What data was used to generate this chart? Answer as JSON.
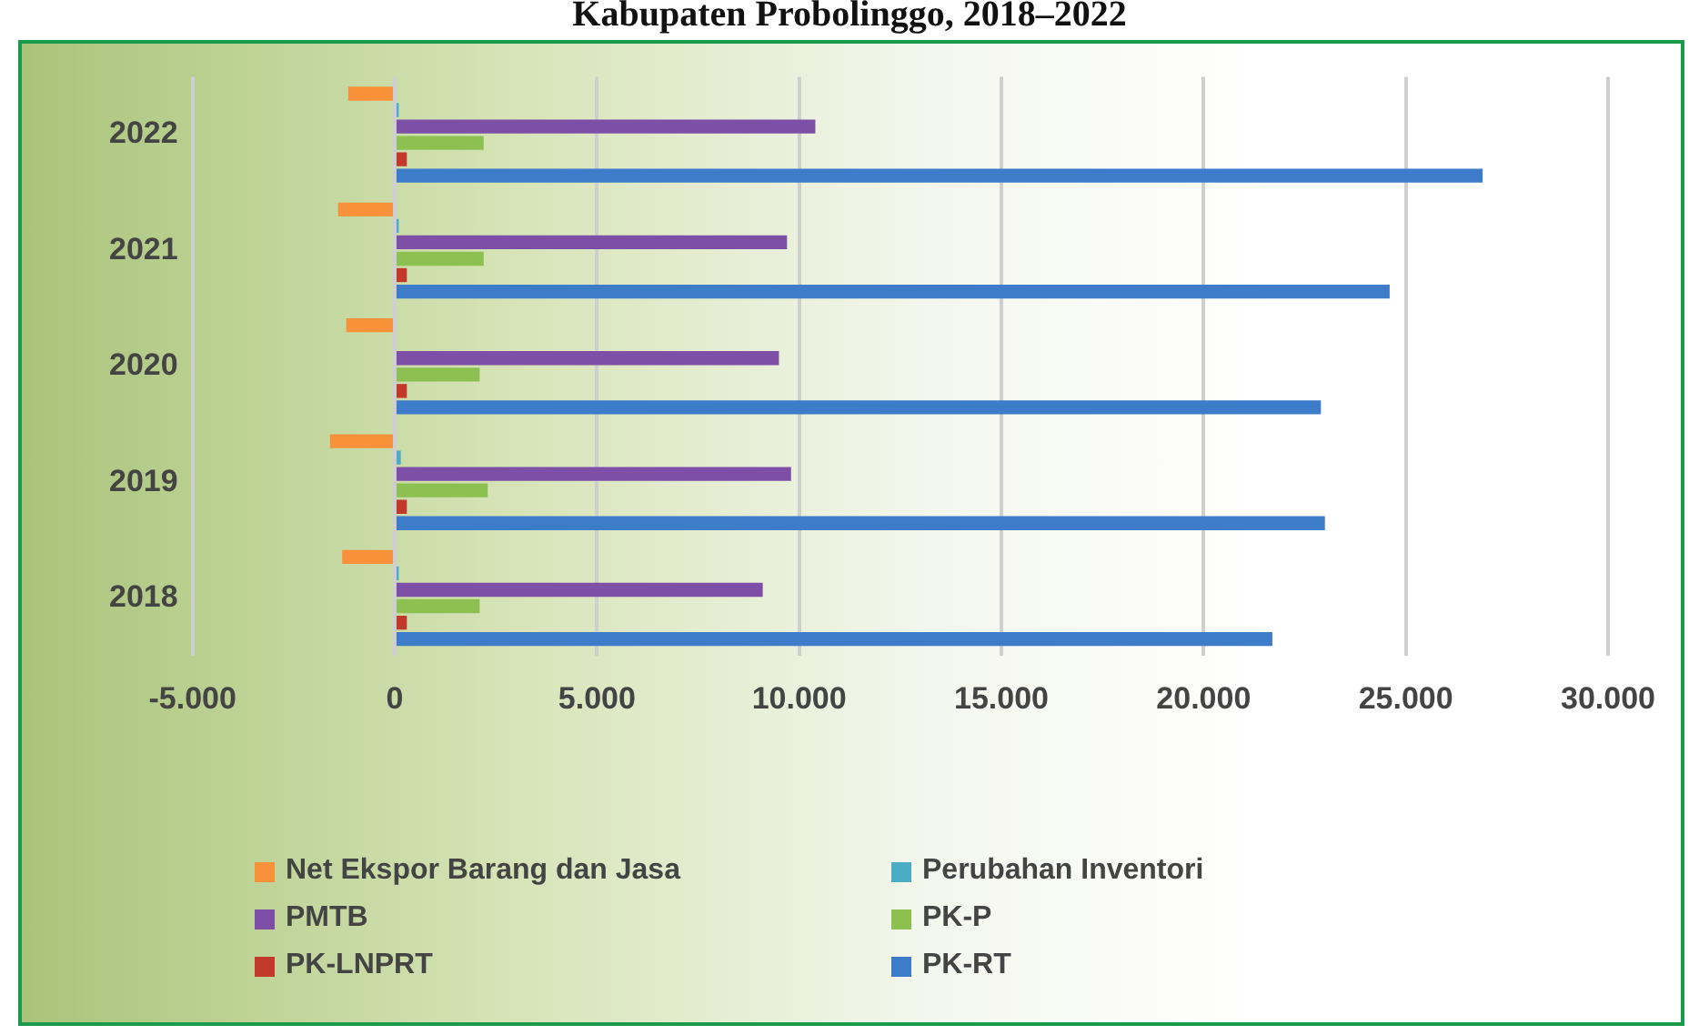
{
  "chart_data": {
    "type": "bar",
    "orientation": "horizontal",
    "title": "Kabupaten Probolinggo, 2018–2022",
    "categories": [
      "2022",
      "2021",
      "2020",
      "2019",
      "2018"
    ],
    "series": [
      {
        "name": "Net Ekspor Barang dan Jasa",
        "color": "#f7923a",
        "values": [
          -1150,
          -1400,
          -1200,
          -1600,
          -1300
        ]
      },
      {
        "name": "Perubahan Inventori",
        "color": "#4bacc6",
        "values": [
          100,
          100,
          0,
          150,
          100
        ]
      },
      {
        "name": "PMTB",
        "color": "#7d4fa6",
        "values": [
          10400,
          9700,
          9500,
          9800,
          9100
        ]
      },
      {
        "name": "PK-P",
        "color": "#8cc152",
        "values": [
          2200,
          2200,
          2100,
          2300,
          2100
        ]
      },
      {
        "name": "PK-LNPRT",
        "color": "#c0392b",
        "values": [
          300,
          300,
          300,
          300,
          300
        ]
      },
      {
        "name": "PK-RT",
        "color": "#3d7cc9",
        "values": [
          26900,
          24600,
          22900,
          23000,
          21700
        ]
      }
    ],
    "xlim": [
      -5000,
      30000
    ],
    "xticks": [
      {
        "value": -5000,
        "label": "-5.000"
      },
      0,
      {
        "value": 5000,
        "label": "5.000"
      },
      {
        "value": 10000,
        "label": "10.000"
      },
      {
        "value": 15000,
        "label": "15.000"
      },
      {
        "value": 20000,
        "label": "20.000"
      },
      {
        "value": 25000,
        "label": "25.000"
      },
      {
        "value": 30000,
        "label": "30.000"
      }
    ],
    "grid": "x",
    "legend": "bottom"
  }
}
